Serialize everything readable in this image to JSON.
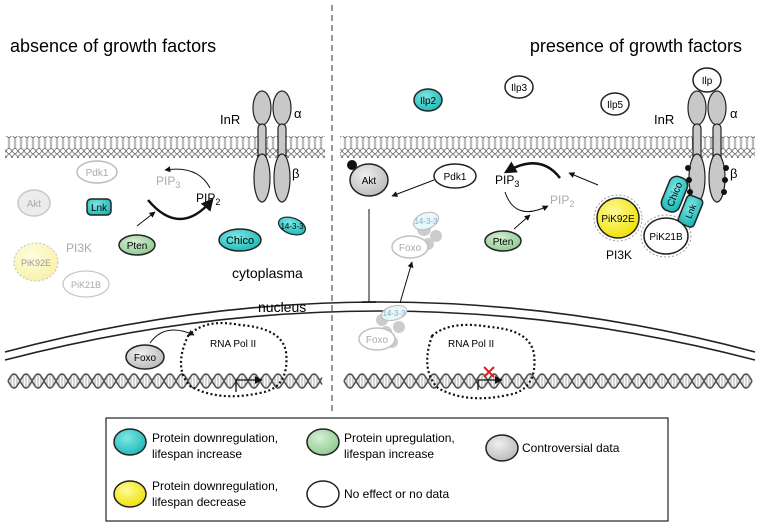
{
  "left_panel": {
    "title": "absence of growth factors",
    "receptor": {
      "label": "InR",
      "alpha": "α",
      "beta": "β"
    },
    "proteins": {
      "pdk1": "Pdk1",
      "akt": "Akt",
      "lnk": "Lnk",
      "pten": "Pten",
      "chico": "Chico",
      "fourteen33": "14-3-3",
      "pik92e": "PiK92E",
      "pik21b": "PiK21B",
      "foxo": "Foxo"
    },
    "pip3": "PIP3",
    "pip2": "PIP2",
    "pi3k": "PI3K",
    "rna_pol": "RNA Pol II"
  },
  "right_panel": {
    "title": "presence of growth factors",
    "receptor": {
      "label": "InR",
      "alpha": "α",
      "beta": "β"
    },
    "ligands": {
      "ilp": "Ilp",
      "ilp2": "Ilp2",
      "ilp3": "Ilp3",
      "ilp5": "Ilp5"
    },
    "proteins": {
      "akt": "Akt",
      "pdk1": "Pdk1",
      "pten": "Pten",
      "pik92e": "PiK92E",
      "pik21b": "PiK21B",
      "chico": "Chico",
      "lnk": "Lnk",
      "fourteen33_a": "14-3-3",
      "foxo_a": "Foxo",
      "fourteen33_b": "14-3-3",
      "foxo_b": "Foxo"
    },
    "pip3": "PIP3",
    "pip2": "PIP2",
    "pi3k": "PI3K",
    "rna_pol": "RNA Pol II"
  },
  "compartments": {
    "cytoplasma": "cytoplasma",
    "nucleus": "nucleus"
  },
  "legend": {
    "items": [
      {
        "label_line1": "Protein downregulation,",
        "label_line2": "lifespan increase",
        "color": "#1ec3c1"
      },
      {
        "label_line1": "Protein upregulation,",
        "label_line2": "lifespan increase",
        "color": "#8cc98c"
      },
      {
        "label_line1": "Controversial data",
        "label_line2": "",
        "color": "#c8c8c8"
      },
      {
        "label_line1": "Protein downregulation,",
        "label_line2": "lifespan decrease",
        "color": "#f2e400"
      },
      {
        "label_line1": "No effect or no data",
        "label_line2": "",
        "color": "#ffffff"
      }
    ]
  },
  "colors": {
    "teal": "#1ec3c1",
    "green": "#8cc98c",
    "gray": "#c8c8c8",
    "yellow": "#f2e400",
    "pale_yellow": "#fbf7b0",
    "faded": "#b8b8b8"
  }
}
